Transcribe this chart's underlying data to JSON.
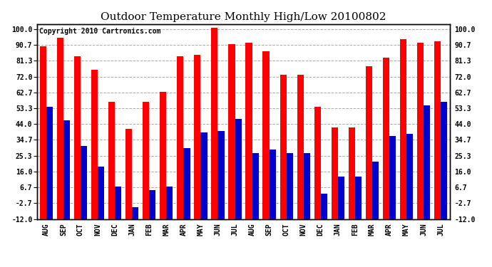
{
  "title": "Outdoor Temperature Monthly High/Low 20100802",
  "copyright": "Copyright 2010 Cartronics.com",
  "months": [
    "AUG",
    "SEP",
    "OCT",
    "NOV",
    "DEC",
    "JAN",
    "FEB",
    "MAR",
    "APR",
    "MAY",
    "JUN",
    "JUL",
    "AUG",
    "SEP",
    "OCT",
    "NOV",
    "DEC",
    "JAN",
    "FEB",
    "MAR",
    "APR",
    "MAY",
    "JUN",
    "JUL"
  ],
  "highs": [
    90,
    95,
    84,
    76,
    57,
    41,
    57,
    63,
    84,
    85,
    101,
    91,
    92,
    87,
    73,
    73,
    54,
    42,
    42,
    78,
    83,
    94,
    92,
    93
  ],
  "lows": [
    54,
    46,
    31,
    19,
    7,
    -5,
    5,
    7,
    30,
    39,
    40,
    47,
    27,
    29,
    27,
    27,
    3,
    13,
    13,
    22,
    37,
    38,
    55,
    57
  ],
  "high_color": "#ff0000",
  "low_color": "#0000cc",
  "bg_color": "#ffffff",
  "grid_color": "#aaaaaa",
  "yticks": [
    100.0,
    90.7,
    81.3,
    72.0,
    62.7,
    53.3,
    44.0,
    34.7,
    25.3,
    16.0,
    6.7,
    -2.7,
    -12.0
  ],
  "ylim": [
    -12.0,
    103
  ],
  "bar_width": 0.38,
  "title_fontsize": 11,
  "copyright_fontsize": 7,
  "tick_fontsize": 7
}
